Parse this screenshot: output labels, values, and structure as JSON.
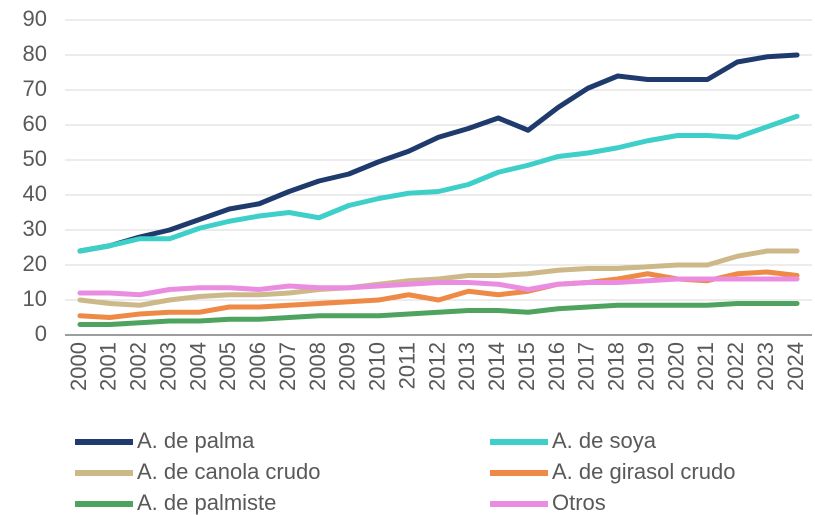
{
  "chart_data": {
    "type": "line",
    "categories": [
      "2000",
      "2001",
      "2002",
      "2003",
      "2004",
      "2005",
      "2006",
      "2007",
      "2008",
      "2009",
      "2010",
      "2011",
      "2012",
      "2013",
      "2014",
      "2015",
      "2016",
      "2017",
      "2018",
      "2019",
      "2020",
      "2021",
      "2022",
      "2023",
      "2024"
    ],
    "series": [
      {
        "name": "A. de palma",
        "color": "#1f3b6e",
        "values": [
          24,
          25.5,
          28,
          30,
          33,
          36,
          37.5,
          41,
          44,
          46,
          49.5,
          52.5,
          56.5,
          59,
          62,
          58.5,
          65,
          70.5,
          74,
          73,
          73,
          73,
          78,
          79.5,
          80
        ]
      },
      {
        "name": "A. de soya",
        "color": "#3fcfc9",
        "values": [
          24,
          25.5,
          27.5,
          27.5,
          30.5,
          32.5,
          34,
          35,
          33.5,
          37,
          39,
          40.5,
          41,
          43,
          46.5,
          48.5,
          51,
          52,
          53.5,
          55.5,
          57,
          57,
          56.5,
          59.5,
          62.5
        ]
      },
      {
        "name": "A. de canola crudo",
        "color": "#cdb88a",
        "values": [
          10,
          9,
          8.5,
          10,
          11,
          11.5,
          11.5,
          12,
          13,
          13.5,
          14.5,
          15.5,
          16,
          17,
          17,
          17.5,
          18.5,
          19,
          19,
          19.5,
          20,
          20,
          22.5,
          24,
          24
        ]
      },
      {
        "name": "A. de girasol crudo",
        "color": "#ee8a45",
        "values": [
          5.5,
          5,
          6,
          6.5,
          6.5,
          8,
          8,
          8.5,
          9,
          9.5,
          10,
          11.5,
          10,
          12.5,
          11.5,
          12.5,
          14.5,
          15,
          16,
          17.5,
          16,
          15.5,
          17.5,
          18,
          17
        ]
      },
      {
        "name": "A. de palmiste",
        "color": "#4ea45e",
        "values": [
          3,
          3,
          3.5,
          4,
          4,
          4.5,
          4.5,
          5,
          5.5,
          5.5,
          5.5,
          6,
          6.5,
          7,
          7,
          6.5,
          7.5,
          8,
          8.5,
          8.5,
          8.5,
          8.5,
          9,
          9,
          9
        ]
      },
      {
        "name": "Otros",
        "color": "#ea8de0",
        "values": [
          12,
          12,
          11.5,
          13,
          13.5,
          13.5,
          13,
          14,
          13.5,
          13.5,
          14,
          14.5,
          15,
          15,
          14.5,
          13,
          14.5,
          15,
          15,
          15.5,
          16,
          16,
          16,
          16,
          16
        ]
      }
    ],
    "ylim": [
      0,
      90
    ],
    "yticks": [
      0,
      10,
      20,
      30,
      40,
      50,
      60,
      70,
      80,
      90
    ],
    "grid": true,
    "legend": "bottom"
  }
}
